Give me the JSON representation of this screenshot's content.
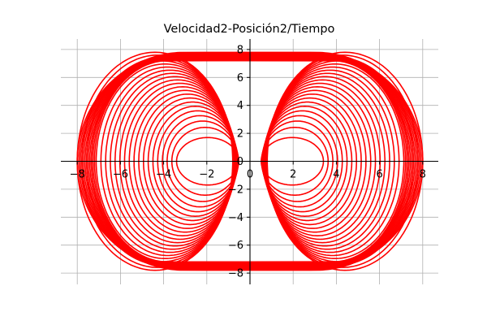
{
  "chart_data": {
    "type": "line",
    "title": "Velocidad2-Posición2/Tiempo",
    "xlabel": "",
    "ylabel": "",
    "xlim": [
      -8.6,
      8.6
    ],
    "ylim": [
      -8.6,
      8.6
    ],
    "x_ticks": [
      -8,
      -6,
      -4,
      -2,
      0,
      2,
      4,
      6,
      8
    ],
    "y_ticks": [
      -8,
      -6,
      -4,
      -2,
      0,
      2,
      4,
      6,
      8
    ],
    "x_tick_labels": [
      "−8",
      "−6",
      "−4",
      "−2",
      "0",
      "2",
      "4",
      "6",
      "8"
    ],
    "y_tick_labels": [
      "−8",
      "−6",
      "−4",
      "−2",
      "0",
      "2",
      "4",
      "6",
      "8"
    ],
    "grid": true,
    "axes_through_origin": true,
    "series": [
      {
        "color": "#ff0000",
        "description_points": {
          "x": [
            -8.0,
            -7.0,
            -5.0,
            -3.0,
            0,
            3.0,
            5.0,
            7.0,
            8.0,
            7.0,
            5.0,
            3.0,
            0,
            -3.0,
            -5.0,
            -7.0,
            -8.0
          ],
          "y": [
            0,
            4.5,
            6.8,
            7.6,
            7.8,
            7.6,
            6.8,
            4.5,
            0,
            -4.5,
            -6.8,
            -7.6,
            -7.8,
            -7.6,
            -6.8,
            -4.5,
            0
          ]
        }
      }
    ]
  }
}
